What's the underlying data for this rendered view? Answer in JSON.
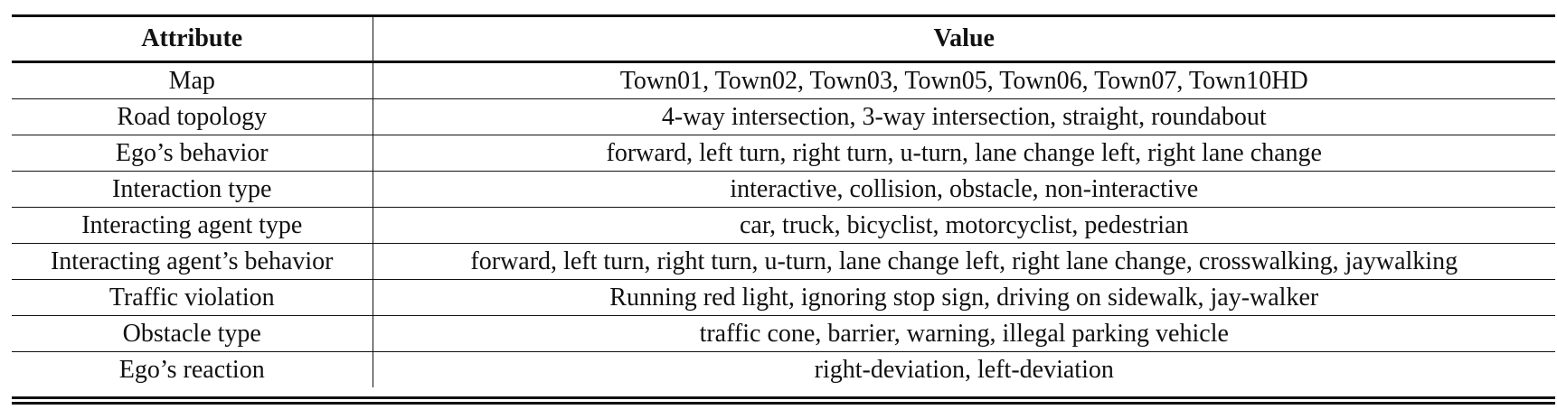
{
  "table": {
    "headers": [
      "Attribute",
      "Value"
    ],
    "rows": [
      [
        "Map",
        "Town01, Town02, Town03, Town05, Town06, Town07, Town10HD"
      ],
      [
        "Road topology",
        "4-way intersection, 3-way intersection, straight, roundabout"
      ],
      [
        "Ego’s behavior",
        "forward, left turn, right turn, u-turn, lane change left, right lane change"
      ],
      [
        "Interaction type",
        "interactive, collision, obstacle, non-interactive"
      ],
      [
        "Interacting agent type",
        "car, truck, bicyclist, motorcyclist, pedestrian"
      ],
      [
        "Interacting agent’s behavior",
        "forward, left turn, right turn, u-turn, lane change left, right lane change, crosswalking, jaywalking"
      ],
      [
        "Traffic violation",
        "Running red light, ignoring stop sign, driving on sidewalk, jay-walker"
      ],
      [
        "Obstacle type",
        "traffic cone, barrier, warning, illegal parking vehicle"
      ],
      [
        "Ego’s reaction",
        "right-deviation, left-deviation"
      ]
    ]
  }
}
